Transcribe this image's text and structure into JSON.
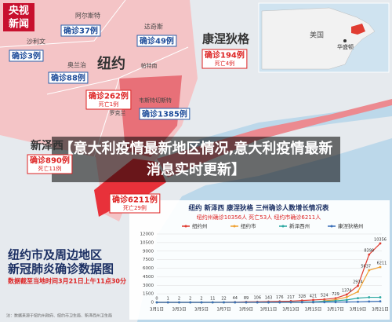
{
  "logo": {
    "line1": "央视",
    "line2": "新闻"
  },
  "headline": "【意大利疫情最新地区情况,意大利疫情最新消息实时更新】",
  "places": [
    "阿尔斯特",
    "达奇斯",
    "沙利文",
    "奥兰治",
    "纽约",
    "康涅狄格",
    "帕特南",
    "罗克兰",
    "韦斯特切斯特",
    "新泽西"
  ],
  "badges": [
    {
      "cases": "确诊37例"
    },
    {
      "cases": "确诊49例"
    },
    {
      "cases": "确诊3例"
    },
    {
      "cases": "确诊88例"
    },
    {
      "cases": "确诊194例",
      "deaths": "死亡4例"
    },
    {
      "cases": "确诊262例",
      "deaths": "死亡1例"
    },
    {
      "cases": "确诊1385例"
    },
    {
      "cases": "确诊890例",
      "deaths": "死亡11例"
    },
    {
      "cases": "确诊6211例",
      "deaths": "死亡29例"
    }
  ],
  "inset": {
    "country": "美国",
    "capital": "华盛顿"
  },
  "caption": {
    "title_line1": "纽约市及周边地区",
    "title_line2": "新冠肺炎确诊数据图",
    "note": "数据截至当地时间3月21日上午11点30分"
  },
  "source": "注：数据来源于纽约州政府、纽约市卫生局、新泽西州卫生局",
  "chart_data": {
    "type": "line",
    "title": "纽约 新泽西 康涅狄格 三州确诊人数增长情况表",
    "subtitle": "纽约州确诊10356人 死亡53人 纽约市确诊6211人",
    "categories": [
      "3月1日",
      null,
      "3月3日",
      null,
      "3月5日",
      null,
      "3月7日",
      null,
      "3月9日",
      null,
      "3月11日",
      null,
      "3月13日",
      null,
      "3月15日",
      null,
      "3月17日",
      null,
      "3月19日",
      null,
      "3月21日"
    ],
    "series": [
      {
        "name": "纽约州",
        "color": "#e03c31",
        "values": [
          0,
          1,
          2,
          2,
          2,
          11,
          22,
          44,
          89,
          106,
          143,
          176,
          217,
          328,
          421,
          524,
          729,
          1374,
          2914,
          8398,
          10356
        ]
      },
      {
        "name": "纽约市",
        "color": "#f0a030",
        "values": [
          0,
          0,
          0,
          0,
          0,
          0,
          0,
          0,
          0,
          0,
          0,
          0,
          0,
          0,
          0,
          269,
          463,
          923,
          1871,
          5637,
          6211
        ]
      },
      {
        "name": "新泽西州",
        "color": "#2aa7a0",
        "values": [
          0,
          0,
          0,
          1,
          2,
          4,
          6,
          6,
          11,
          15,
          23,
          29,
          50,
          69,
          98,
          178,
          267,
          427,
          742,
          890,
          890
        ]
      },
      {
        "name": "康涅狄格州",
        "color": "#3a6fb8",
        "values": [
          0,
          0,
          0,
          0,
          0,
          0,
          0,
          1,
          1,
          2,
          3,
          5,
          11,
          20,
          24,
          26,
          41,
          68,
          96,
          159,
          194
        ]
      }
    ],
    "ylim": [
      0,
      12000
    ],
    "yticks": [
      0,
      1500,
      3000,
      4500,
      6000,
      7500,
      9000,
      10500,
      12000
    ],
    "grid": true
  }
}
